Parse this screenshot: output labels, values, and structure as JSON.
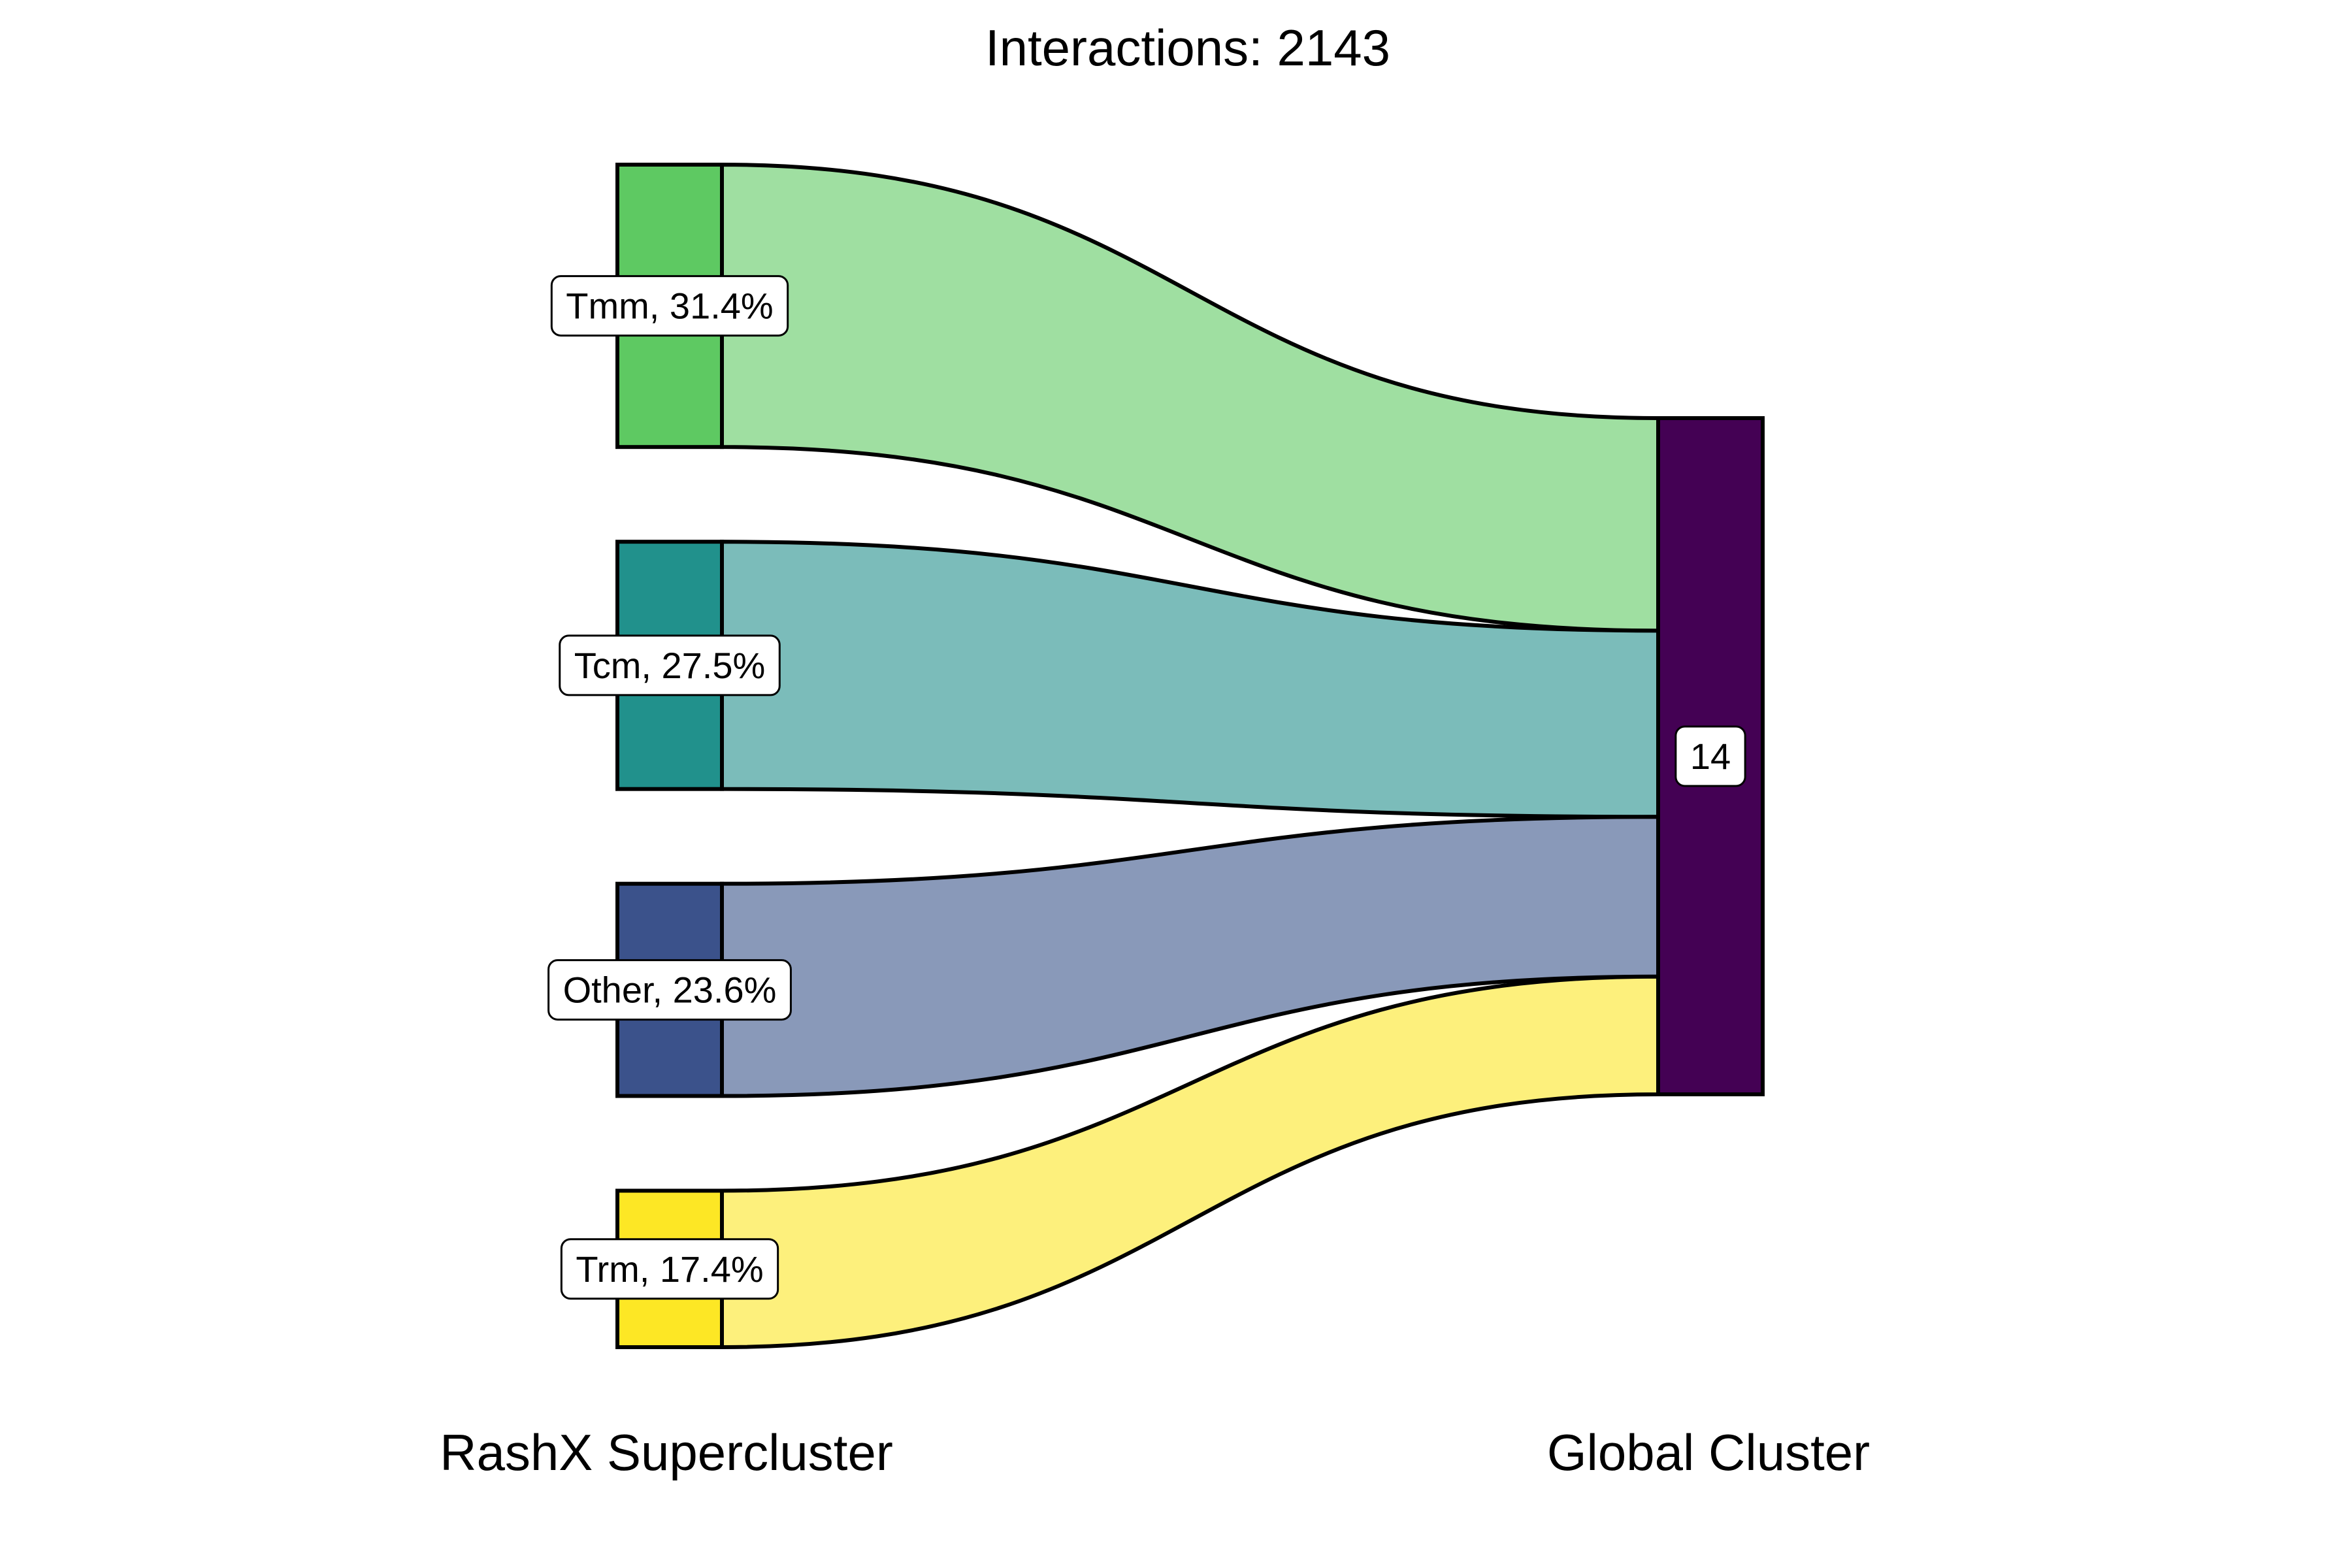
{
  "chart_data": {
    "type": "sankey",
    "title": "Interactions: 2143",
    "axis_labels": [
      "RashX Supercluster",
      "Global Cluster"
    ],
    "sources": [
      {
        "name": "Tmm",
        "label": "Tmm, 31.4%",
        "percent": 31.4,
        "node_color": "#5ec962",
        "flow_color": "#9fdfa1"
      },
      {
        "name": "Tcm",
        "label": "Tcm, 27.5%",
        "percent": 27.5,
        "node_color": "#21918c",
        "flow_color": "#7bbcba"
      },
      {
        "name": "Other",
        "label": "Other, 23.6%",
        "percent": 23.6,
        "node_color": "#3b528b",
        "flow_color": "#8999b9"
      },
      {
        "name": "Trm",
        "label": "Trm, 17.4%",
        "percent": 17.4,
        "node_color": "#fde725",
        "flow_color": "#fdf07c"
      }
    ],
    "target": {
      "name": "14",
      "label": "14",
      "color": "#440154"
    }
  }
}
